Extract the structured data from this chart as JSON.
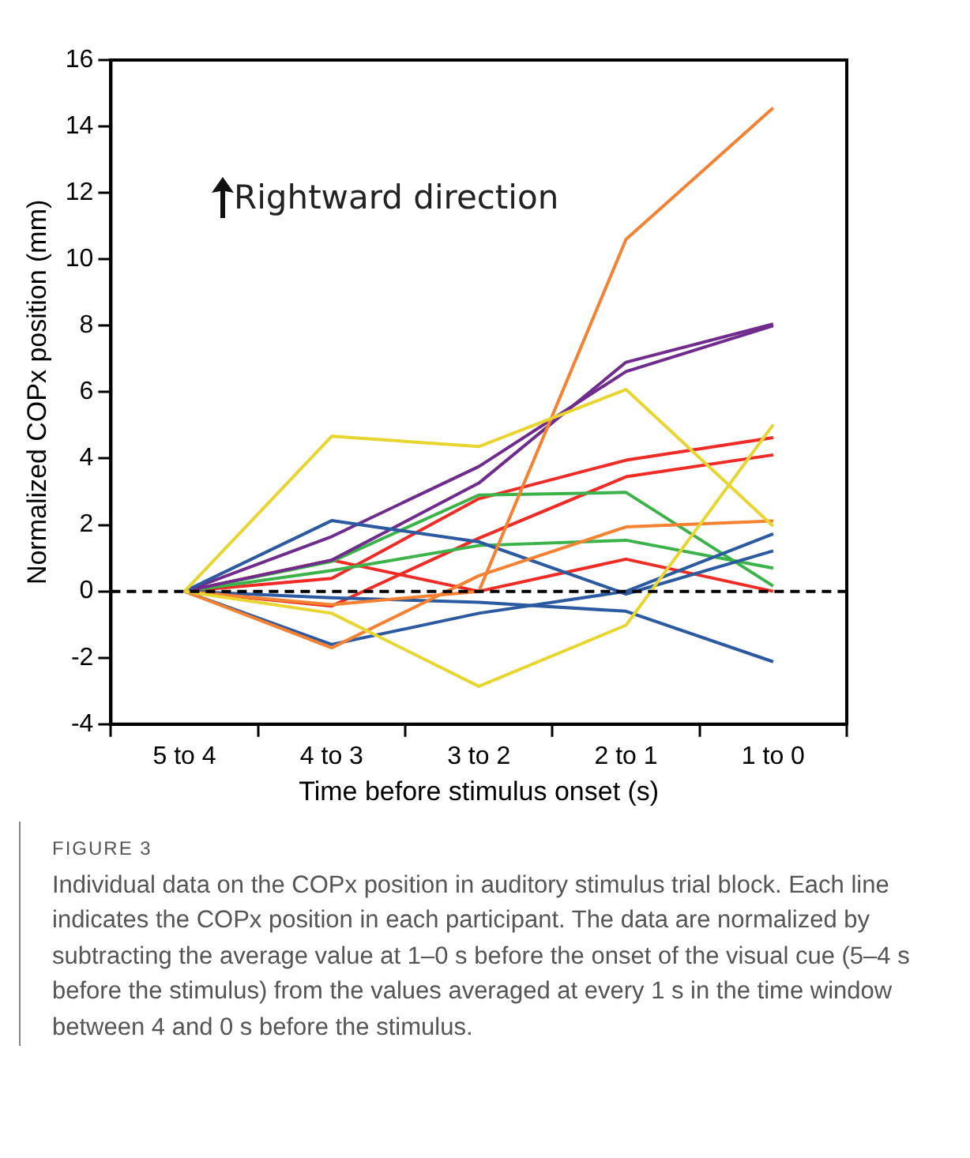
{
  "chart_data": {
    "type": "line",
    "xlabel": "Time before stimulus onset (s)",
    "ylabel": "Normalized COPx position (mm)",
    "categories": [
      "5 to 4",
      "4 to 3",
      "3 to 2",
      "2 to 1",
      "1 to 0"
    ],
    "series": [
      {
        "color": "#e8d530",
        "values": [
          0,
          4.67,
          4.36,
          6.08,
          1.96
        ]
      },
      {
        "color": "#e8d530",
        "values": [
          0,
          -0.66,
          -2.86,
          -1.02,
          5.02
        ]
      },
      {
        "color": "#f58232",
        "values": [
          0,
          -0.4,
          0,
          10.6,
          14.56
        ]
      },
      {
        "color": "#f58232",
        "values": [
          0,
          -1.7,
          0.47,
          1.94,
          2.12
        ]
      },
      {
        "color": "#2b5aa0",
        "values": [
          0,
          2.13,
          1.49,
          -0.08,
          1.22
        ]
      },
      {
        "color": "#2b5aa0",
        "values": [
          0,
          -1.6,
          -0.66,
          0,
          1.73
        ]
      },
      {
        "color": "#2b5aa0",
        "values": [
          0,
          -0.19,
          -0.33,
          -0.6,
          -2.12
        ]
      },
      {
        "color": "#6f2c8c",
        "values": [
          0,
          0.94,
          3.26,
          6.9,
          8.05
        ]
      },
      {
        "color": "#6f2c8c",
        "values": [
          0,
          1.65,
          3.76,
          6.62,
          8.0
        ]
      },
      {
        "color": "#3cb24a",
        "values": [
          0,
          0.9,
          2.9,
          2.98,
          0.16
        ]
      },
      {
        "color": "#3cb24a",
        "values": [
          0,
          0.63,
          1.38,
          1.54,
          0.7
        ]
      },
      {
        "color": "#ee2b24",
        "values": [
          0,
          0.39,
          2.79,
          3.95,
          4.63
        ]
      },
      {
        "color": "#ee2b24",
        "values": [
          0,
          -0.44,
          1.6,
          3.45,
          4.11
        ]
      },
      {
        "color": "#ee2b24",
        "values": [
          0,
          0.94,
          0,
          0.97,
          0
        ]
      }
    ],
    "ylim": [
      -4,
      16
    ],
    "yticks": [
      -4,
      -2,
      0,
      2,
      4,
      6,
      8,
      10,
      12,
      14,
      16
    ],
    "ref_lines": [
      {
        "axis": "y",
        "value": 0,
        "color": "#000000",
        "line_style": "dashed"
      }
    ],
    "annotations": [
      "Rightward direction",
      "FIGURE 3",
      "Individual data on the COPx position in auditory stimulus trial block. Each line indicates the COPx position in each participant. The data are normalized by subtracting the average value at 1–0 s before the onset of the visual cue (5–4 s before the stimulus) from the values averaged at every 1 s in the time window between 4 and 0 s before the stimulus."
    ],
    "grid": false,
    "legend": false,
    "marker": "none",
    "line_style": "solid"
  }
}
